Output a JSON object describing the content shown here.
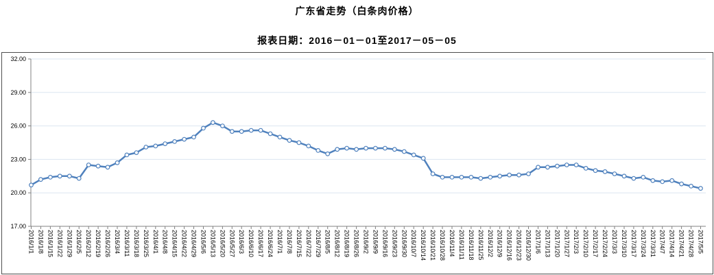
{
  "header": {
    "title": "广东省走势（白条肉价格）",
    "subtitle": "报表日期：2016－01－01至2017－05－05"
  },
  "chart_data": {
    "type": "line",
    "title": "广东省走势（白条肉价格）",
    "subtitle": "报表日期：2016－01－01至2017－05－05",
    "xlabel": "",
    "ylabel": "",
    "ylim": [
      17,
      32
    ],
    "ytick_step": 3,
    "ytick_labels": [
      "32.00",
      "29.00",
      "26.00",
      "23.00",
      "20.00",
      "17.00"
    ],
    "grid": true,
    "legend": "none",
    "line_color": "#4f81bd",
    "marker_style": "hollow-circle",
    "marker_fill": "#ffffff",
    "gridline_color": "#dbe5f1",
    "axis_color": "#808080",
    "text_color": "#000000",
    "border_color": "#4d4d4d",
    "categories": [
      "2016/1/1",
      "2016/1/8",
      "2016/1/15",
      "2016/1/22",
      "2016/1/29",
      "2016/2/5",
      "2016/2/12",
      "2016/2/19",
      "2016/2/26",
      "2016/3/4",
      "2016/3/11",
      "2016/3/18",
      "2016/3/25",
      "2016/4/1",
      "2016/4/8",
      "2016/4/15",
      "2016/4/22",
      "2016/4/29",
      "2016/5/6",
      "2016/5/13",
      "2016/5/20",
      "2016/5/27",
      "2016/6/3",
      "2016/6/10",
      "2016/6/17",
      "2016/6/24",
      "2016/7/1",
      "2016/7/8",
      "2016/7/15",
      "2016/7/22",
      "2016/7/29",
      "2016/8/5",
      "2016/8/12",
      "2016/8/19",
      "2016/8/26",
      "2016/9/2",
      "2016/9/9",
      "2016/9/16",
      "2016/9/23",
      "2016/9/30",
      "2016/10/7",
      "2016/10/14",
      "2016/10/21",
      "2016/10/28",
      "2016/11/4",
      "2016/11/11",
      "2016/11/18",
      "2016/11/25",
      "2016/12/2",
      "2016/12/9",
      "2016/12/16",
      "2016/12/23",
      "2016/12/30",
      "2017/1/6",
      "2017/1/13",
      "2017/1/20",
      "2017/1/27",
      "2017/2/3",
      "2017/2/10",
      "2017/2/17",
      "2017/2/24",
      "2017/3/3",
      "2017/3/10",
      "2017/3/17",
      "2017/3/24",
      "2017/3/31",
      "2017/4/7",
      "2017/4/14",
      "2017/4/21",
      "2017/4/28",
      "2017/5/5"
    ],
    "values": [
      20.7,
      21.2,
      21.4,
      21.5,
      21.5,
      21.3,
      22.5,
      22.4,
      22.3,
      22.7,
      23.4,
      23.6,
      24.1,
      24.2,
      24.4,
      24.6,
      24.8,
      25.0,
      25.8,
      26.3,
      26.0,
      25.5,
      25.5,
      25.6,
      25.6,
      25.3,
      25.0,
      24.7,
      24.5,
      24.2,
      23.8,
      23.5,
      23.9,
      24.0,
      23.9,
      24.0,
      24.0,
      24.0,
      23.9,
      23.7,
      23.4,
      23.1,
      21.7,
      21.4,
      21.4,
      21.4,
      21.4,
      21.3,
      21.4,
      21.5,
      21.6,
      21.6,
      21.7,
      22.3,
      22.3,
      22.4,
      22.5,
      22.5,
      22.2,
      22.0,
      21.9,
      21.7,
      21.5,
      21.3,
      21.4,
      21.1,
      21.0,
      21.1,
      20.8,
      20.6,
      20.4
    ]
  }
}
